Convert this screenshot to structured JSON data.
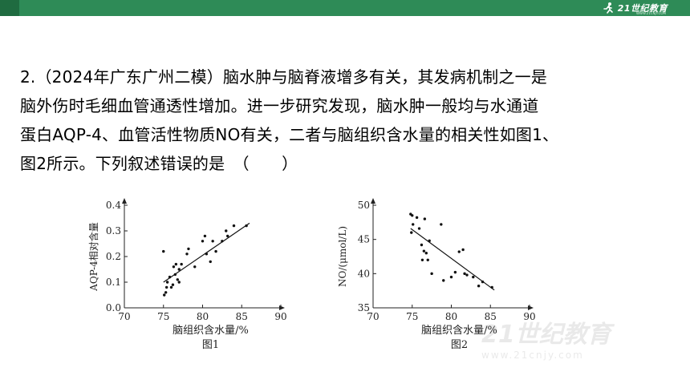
{
  "header": {
    "logo_text": "21世纪教育",
    "logo_sub": "WWW.21CNJY.COM",
    "bar_color": "#2e8b57"
  },
  "question": {
    "lines": [
      "2.（2024年广东广州二模）脑水肿与脑脊液增多有关，其发病机制之一是",
      "脑外伤时毛细血管通透性增加。进一步研究发现，脑水肿一般均与水通道",
      "蛋白AQP-4、血管活性物质NO有关，二者与脑组织含水量的相关性如图1、",
      "图2所示。下列叙述错误的是　（　　）"
    ]
  },
  "watermark": {
    "text": "21世纪教育",
    "url": "www.21cnjy.com"
  },
  "chart_data": [
    {
      "type": "scatter",
      "title": "图1",
      "xlabel": "脑组织含水量/%",
      "ylabel": "AQP-4相对含量",
      "xlim": [
        70,
        90
      ],
      "ylim": [
        0,
        0.4
      ],
      "xticks": [
        "70",
        "75",
        "80",
        "85",
        "90"
      ],
      "yticks": [
        "0.0",
        "0.1",
        "0.2",
        "0.3",
        "0.4"
      ],
      "points": [
        [
          75.0,
          0.22
        ],
        [
          75.1,
          0.05
        ],
        [
          75.3,
          0.06
        ],
        [
          75.4,
          0.08
        ],
        [
          75.5,
          0.1
        ],
        [
          75.8,
          0.12
        ],
        [
          76.0,
          0.08
        ],
        [
          76.2,
          0.09
        ],
        [
          76.3,
          0.16
        ],
        [
          76.5,
          0.13
        ],
        [
          76.6,
          0.17
        ],
        [
          76.8,
          0.11
        ],
        [
          77.0,
          0.1
        ],
        [
          77.0,
          0.15
        ],
        [
          77.3,
          0.17
        ],
        [
          78.0,
          0.21
        ],
        [
          78.2,
          0.23
        ],
        [
          79.0,
          0.16
        ],
        [
          80.0,
          0.26
        ],
        [
          80.3,
          0.28
        ],
        [
          80.5,
          0.21
        ],
        [
          81.0,
          0.18
        ],
        [
          81.3,
          0.26
        ],
        [
          81.7,
          0.22
        ],
        [
          82.5,
          0.26
        ],
        [
          83.0,
          0.3
        ],
        [
          83.2,
          0.28
        ],
        [
          84.0,
          0.32
        ],
        [
          85.6,
          0.32
        ]
      ],
      "trendline": [
        [
          75.0,
          0.1
        ],
        [
          86.0,
          0.33
        ]
      ],
      "grid": false
    },
    {
      "type": "scatter",
      "title": "图2",
      "xlabel": "脑组织含水量/%",
      "ylabel": "NO/(μmol/L)",
      "xlim": [
        70,
        90
      ],
      "ylim": [
        35,
        50
      ],
      "xticks": [
        "70",
        "75",
        "80",
        "85",
        "90"
      ],
      "yticks": [
        "35",
        "40",
        "45",
        "50"
      ],
      "points": [
        [
          74.8,
          48.7
        ],
        [
          75.0,
          48.5
        ],
        [
          74.9,
          46.0
        ],
        [
          75.1,
          47.2
        ],
        [
          75.6,
          48.2
        ],
        [
          75.9,
          46.6
        ],
        [
          76.2,
          44.2
        ],
        [
          76.3,
          42.0
        ],
        [
          76.5,
          43.3
        ],
        [
          76.6,
          48.0
        ],
        [
          76.8,
          43.0
        ],
        [
          77.0,
          42.0
        ],
        [
          77.2,
          44.8
        ],
        [
          77.5,
          40.0
        ],
        [
          78.7,
          47.2
        ],
        [
          79.0,
          39.0
        ],
        [
          80.0,
          39.5
        ],
        [
          80.5,
          40.2
        ],
        [
          81.0,
          43.2
        ],
        [
          81.5,
          43.5
        ],
        [
          81.7,
          40.0
        ],
        [
          82.0,
          39.8
        ],
        [
          82.8,
          39.5
        ],
        [
          83.5,
          38.2
        ],
        [
          84.0,
          38.8
        ],
        [
          85.2,
          38.0
        ]
      ],
      "trendline": [
        [
          74.8,
          46.6
        ],
        [
          85.5,
          37.6
        ]
      ],
      "grid": false
    }
  ]
}
